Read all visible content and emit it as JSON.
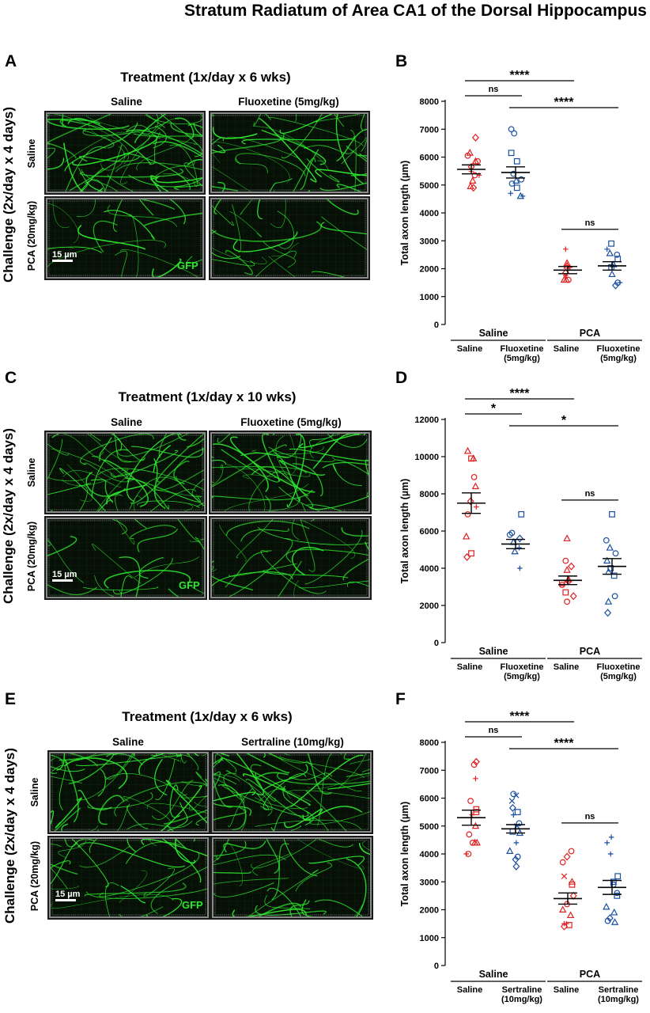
{
  "figure_title": "Stratum Radiatum of Area CA1 of the Dorsal Hippocampus",
  "panels": {
    "A": {
      "label": "A",
      "treatment": "Treatment (1x/day x 6 wks)",
      "col1": "Saline",
      "col2": "Fluoxetine (5mg/kg)"
    },
    "C": {
      "label": "C",
      "treatment": "Treatment (1x/day x 10 wks)",
      "col1": "Saline",
      "col2": "Fluoxetine (5mg/kg)"
    },
    "E": {
      "label": "E",
      "treatment": "Treatment (1x/day x 6 wks)",
      "col1": "Saline",
      "col2": "Sertraline (10mg/kg)"
    }
  },
  "row_labels": {
    "challenge": "Challenge (2x/day x 4 days)",
    "saline": "Saline",
    "pca": "PCA (20mg/kg)"
  },
  "micro_labels": {
    "scale": "15 µm",
    "gfp": "GFP"
  },
  "colors": {
    "saline_group": "#e02020",
    "drug_group": "#1a4fa0",
    "axon_green": "#2ee82e"
  },
  "chart_data": [
    {
      "panel": "B",
      "type": "scatter",
      "ylabel": "Total axon length (µm)",
      "ylim": [
        0,
        8000
      ],
      "yticks": [
        0,
        1000,
        2000,
        3000,
        4000,
        5000,
        6000,
        7000,
        8000
      ],
      "group_labels": [
        "Saline",
        "PCA"
      ],
      "category_labels": [
        [
          "Saline"
        ],
        [
          "Fluoxetine",
          "(5mg/kg)"
        ],
        [
          "Saline"
        ],
        [
          "Fluoxetine",
          "(5mg/kg)"
        ]
      ],
      "groups": [
        {
          "color": "red",
          "mean": 5560,
          "sem": 160,
          "points": [
            [
              6700,
              "d"
            ],
            [
              6150,
              "t"
            ],
            [
              6050,
              "o"
            ],
            [
              5850,
              "t"
            ],
            [
              5850,
              "o"
            ],
            [
              5650,
              "d"
            ],
            [
              5480,
              "+"
            ],
            [
              5350,
              "+"
            ],
            [
              5350,
              "o"
            ],
            [
              5150,
              "t"
            ],
            [
              4900,
              "d"
            ],
            [
              4950,
              "t"
            ]
          ]
        },
        {
          "color": "blue",
          "mean": 5450,
          "sem": 200,
          "points": [
            [
              7000,
              "o"
            ],
            [
              6850,
              "o"
            ],
            [
              6150,
              "s"
            ],
            [
              5850,
              "s"
            ],
            [
              5400,
              "o"
            ],
            [
              5200,
              "o"
            ],
            [
              5150,
              "t"
            ],
            [
              5050,
              "o"
            ],
            [
              4900,
              "s"
            ],
            [
              4700,
              "+"
            ],
            [
              4600,
              "t"
            ],
            [
              4600,
              "+"
            ]
          ]
        },
        {
          "color": "red",
          "mean": 1950,
          "sem": 130,
          "points": [
            [
              2700,
              "+"
            ],
            [
              2200,
              "t"
            ],
            [
              2100,
              "t"
            ],
            [
              2050,
              "+"
            ],
            [
              1850,
              "d"
            ],
            [
              1750,
              "+"
            ],
            [
              1600,
              "t"
            ],
            [
              1600,
              "o"
            ],
            [
              1600,
              "t"
            ]
          ]
        },
        {
          "color": "blue",
          "mean": 2100,
          "sem": 150,
          "points": [
            [
              2900,
              "s"
            ],
            [
              2700,
              "+"
            ],
            [
              2550,
              "t"
            ],
            [
              2500,
              "o"
            ],
            [
              2350,
              "s"
            ],
            [
              2150,
              "t"
            ],
            [
              2050,
              "s"
            ],
            [
              1800,
              "t"
            ],
            [
              1500,
              "o"
            ],
            [
              1500,
              "+"
            ],
            [
              1400,
              "d"
            ]
          ]
        }
      ],
      "brackets": [
        {
          "from": 0,
          "to": 2,
          "level": 3,
          "label": "****"
        },
        {
          "from": 0,
          "to": 1,
          "level": 1,
          "label": "ns"
        },
        {
          "from": 1,
          "to": 3,
          "level": 2,
          "label": "****"
        },
        {
          "from": 2,
          "to": 3,
          "level": 0,
          "label": "ns"
        }
      ]
    },
    {
      "panel": "D",
      "type": "scatter",
      "ylabel": "Total axon length (µm)",
      "ylim": [
        0,
        12000
      ],
      "yticks": [
        0,
        2000,
        4000,
        6000,
        8000,
        10000,
        12000
      ],
      "group_labels": [
        "Saline",
        "PCA"
      ],
      "category_labels": [
        [
          "Saline"
        ],
        [
          "Fluoxetine",
          "(5mg/kg)"
        ],
        [
          "Saline"
        ],
        [
          "Fluoxetine",
          "(5mg/kg)"
        ]
      ],
      "groups": [
        {
          "color": "red",
          "mean": 7500,
          "sem": 550,
          "points": [
            [
              10300,
              "t"
            ],
            [
              9900,
              "s"
            ],
            [
              9900,
              "t"
            ],
            [
              8900,
              "o"
            ],
            [
              8400,
              "t"
            ],
            [
              7600,
              "d"
            ],
            [
              7300,
              "+"
            ],
            [
              6900,
              "o"
            ],
            [
              5700,
              "t"
            ],
            [
              4800,
              "s"
            ],
            [
              4600,
              "d"
            ]
          ]
        },
        {
          "color": "blue",
          "mean": 5300,
          "sem": 250,
          "points": [
            [
              6900,
              "s"
            ],
            [
              5900,
              "o"
            ],
            [
              5800,
              "o"
            ],
            [
              5600,
              "d"
            ],
            [
              5400,
              "t"
            ],
            [
              5100,
              "+"
            ],
            [
              4900,
              "t"
            ],
            [
              4000,
              "+"
            ]
          ]
        },
        {
          "color": "red",
          "mean": 3350,
          "sem": 230,
          "points": [
            [
              5600,
              "t"
            ],
            [
              4400,
              "o"
            ],
            [
              4100,
              "d"
            ],
            [
              3900,
              "t"
            ],
            [
              3400,
              "t"
            ],
            [
              3300,
              "d"
            ],
            [
              3200,
              "s"
            ],
            [
              3100,
              "o"
            ],
            [
              2700,
              "s"
            ],
            [
              2500,
              "d"
            ],
            [
              2200,
              "o"
            ]
          ]
        },
        {
          "color": "blue",
          "mean": 4100,
          "sem": 420,
          "points": [
            [
              6900,
              "s"
            ],
            [
              5500,
              "o"
            ],
            [
              5100,
              "t"
            ],
            [
              4800,
              "o"
            ],
            [
              4400,
              "t"
            ],
            [
              4000,
              "s"
            ],
            [
              3800,
              "t"
            ],
            [
              3600,
              "s"
            ],
            [
              2500,
              "o"
            ],
            [
              2200,
              "t"
            ],
            [
              1600,
              "d"
            ]
          ]
        }
      ],
      "brackets": [
        {
          "from": 0,
          "to": 2,
          "level": 3,
          "label": "****"
        },
        {
          "from": 0,
          "to": 1,
          "level": 1,
          "label": "*"
        },
        {
          "from": 1,
          "to": 3,
          "level": 2,
          "label": "*"
        },
        {
          "from": 2,
          "to": 3,
          "level": 0,
          "label": "ns"
        }
      ]
    },
    {
      "panel": "F",
      "type": "scatter",
      "ylabel": "Total axon length (µm)",
      "ylim": [
        0,
        8000
      ],
      "yticks": [
        0,
        1000,
        2000,
        3000,
        4000,
        5000,
        6000,
        7000,
        8000
      ],
      "group_labels": [
        "Saline",
        "PCA"
      ],
      "category_labels": [
        [
          "Saline"
        ],
        [
          "Sertraline",
          "(10mg/kg)"
        ],
        [
          "Saline"
        ],
        [
          "Sertraline",
          "(10mg/kg)"
        ]
      ],
      "groups": [
        {
          "color": "red",
          "mean": 5300,
          "sem": 270,
          "points": [
            [
              7300,
              "d"
            ],
            [
              7200,
              "o"
            ],
            [
              6700,
              "+"
            ],
            [
              5900,
              "o"
            ],
            [
              5600,
              "s"
            ],
            [
              5500,
              "s"
            ],
            [
              5400,
              "+"
            ],
            [
              5000,
              "t"
            ],
            [
              4700,
              "o"
            ],
            [
              4400,
              "t"
            ],
            [
              4400,
              "t"
            ],
            [
              4400,
              "o"
            ],
            [
              4000,
              "+"
            ],
            [
              4000,
              "o"
            ]
          ]
        },
        {
          "color": "blue",
          "mean": 4900,
          "sem": 150,
          "points": [
            [
              6100,
              "x"
            ],
            [
              6150,
              "o"
            ],
            [
              5900,
              "x"
            ],
            [
              5650,
              "d"
            ],
            [
              5500,
              "s"
            ],
            [
              5400,
              "+"
            ],
            [
              5100,
              "o"
            ],
            [
              5000,
              "x"
            ],
            [
              4800,
              "s"
            ],
            [
              4750,
              "t"
            ],
            [
              4400,
              "+"
            ],
            [
              4100,
              "t"
            ],
            [
              3900,
              "o"
            ],
            [
              3800,
              "d"
            ],
            [
              3550,
              "d"
            ]
          ]
        },
        {
          "color": "red",
          "mean": 2400,
          "sem": 200,
          "points": [
            [
              4100,
              "o"
            ],
            [
              3900,
              "d"
            ],
            [
              3700,
              "o"
            ],
            [
              3200,
              "x"
            ],
            [
              3000,
              "t"
            ],
            [
              2900,
              "s"
            ],
            [
              2500,
              "d"
            ],
            [
              2200,
              "o"
            ],
            [
              2000,
              "t"
            ],
            [
              1800,
              "t"
            ],
            [
              1500,
              "+"
            ],
            [
              1500,
              "+"
            ],
            [
              1450,
              "s"
            ],
            [
              1400,
              "d"
            ]
          ]
        },
        {
          "color": "blue",
          "mean": 2800,
          "sem": 250,
          "points": [
            [
              4600,
              "+"
            ],
            [
              4400,
              "+"
            ],
            [
              4000,
              "+"
            ],
            [
              3200,
              "s"
            ],
            [
              3000,
              "s"
            ],
            [
              2900,
              "o"
            ],
            [
              2600,
              "o"
            ],
            [
              2500,
              "s"
            ],
            [
              2100,
              "t"
            ],
            [
              1900,
              "t"
            ],
            [
              1700,
              "d"
            ],
            [
              1600,
              "o"
            ],
            [
              1550,
              "t"
            ]
          ]
        }
      ],
      "brackets": [
        {
          "from": 0,
          "to": 2,
          "level": 3,
          "label": "****"
        },
        {
          "from": 0,
          "to": 1,
          "level": 1,
          "label": "ns"
        },
        {
          "from": 1,
          "to": 3,
          "level": 2,
          "label": "****"
        },
        {
          "from": 2,
          "to": 3,
          "level": 0,
          "label": "ns"
        }
      ]
    }
  ]
}
